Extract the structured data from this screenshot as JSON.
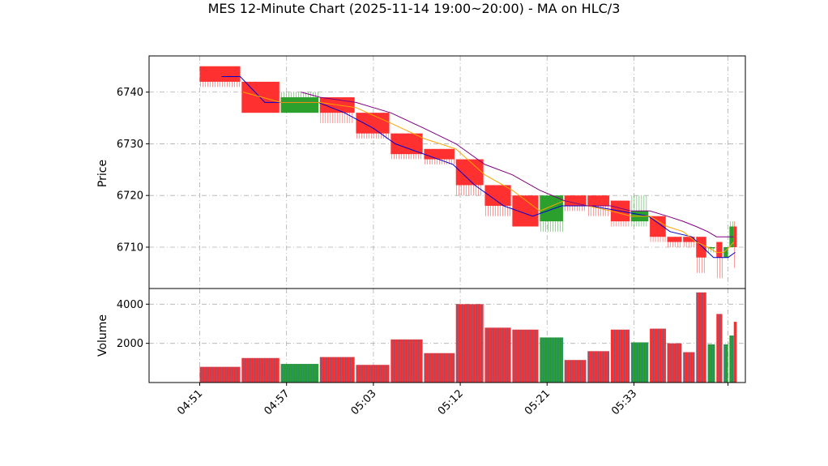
{
  "chart_data": {
    "type": "candlestick",
    "title": "MES 12-Minute Chart (2025-11-14 19:00~20:00) - MA on HLC/3",
    "x_tick_labels": [
      "04:51",
      "04:57",
      "05:03",
      "05:12",
      "05:21",
      "05:33"
    ],
    "price_panel": {
      "ylabel": "Price",
      "ylim": [
        6702,
        6747
      ],
      "yticks": [
        6710,
        6720,
        6730,
        6740
      ],
      "grid": true,
      "bars": [
        {
          "start": 0.0,
          "end": 2.8,
          "open": 6745,
          "close": 6742,
          "high": 6745,
          "low": 6741
        },
        {
          "start": 2.9,
          "end": 5.5,
          "open": 6742,
          "close": 6736,
          "high": 6742,
          "low": 6736
        },
        {
          "start": 5.6,
          "end": 8.2,
          "open": 6736,
          "close": 6739,
          "high": 6740,
          "low": 6736
        },
        {
          "start": 8.3,
          "end": 10.7,
          "open": 6739,
          "close": 6736,
          "high": 6739,
          "low": 6734
        },
        {
          "start": 10.8,
          "end": 13.1,
          "open": 6736,
          "close": 6732,
          "high": 6736,
          "low": 6731
        },
        {
          "start": 13.2,
          "end": 15.4,
          "open": 6732,
          "close": 6728,
          "high": 6732,
          "low": 6727
        },
        {
          "start": 15.5,
          "end": 17.6,
          "open": 6729,
          "close": 6727,
          "high": 6729,
          "low": 6726
        },
        {
          "start": 17.7,
          "end": 19.6,
          "open": 6727,
          "close": 6722,
          "high": 6727,
          "low": 6720
        },
        {
          "start": 19.7,
          "end": 21.5,
          "open": 6722,
          "close": 6718,
          "high": 6722,
          "low": 6716
        },
        {
          "start": 21.6,
          "end": 23.4,
          "open": 6720,
          "close": 6714,
          "high": 6720,
          "low": 6714
        },
        {
          "start": 23.5,
          "end": 25.1,
          "open": 6715,
          "close": 6720,
          "high": 6720,
          "low": 6713
        },
        {
          "start": 25.2,
          "end": 26.7,
          "open": 6720,
          "close": 6718,
          "high": 6720,
          "low": 6717
        },
        {
          "start": 26.8,
          "end": 28.3,
          "open": 6720,
          "close": 6718,
          "high": 6720,
          "low": 6716
        },
        {
          "start": 28.4,
          "end": 29.7,
          "open": 6719,
          "close": 6715,
          "high": 6719,
          "low": 6714
        },
        {
          "start": 29.8,
          "end": 31.0,
          "open": 6715,
          "close": 6717,
          "high": 6720,
          "low": 6714
        },
        {
          "start": 31.1,
          "end": 32.2,
          "open": 6716,
          "close": 6712,
          "high": 6716,
          "low": 6711
        },
        {
          "start": 32.3,
          "end": 33.3,
          "open": 6712,
          "close": 6711,
          "high": 6712,
          "low": 6710
        },
        {
          "start": 33.4,
          "end": 34.2,
          "open": 6712,
          "close": 6711,
          "high": 6712,
          "low": 6710
        },
        {
          "start": 34.3,
          "end": 35.0,
          "open": 6712,
          "close": 6708,
          "high": 6712,
          "low": 6705
        },
        {
          "start": 35.1,
          "end": 35.6,
          "open": 6710,
          "close": 6710,
          "high": 6710,
          "low": 6709
        },
        {
          "start": 35.7,
          "end": 36.1,
          "open": 6711,
          "close": 6708,
          "high": 6711,
          "low": 6704
        },
        {
          "start": 36.2,
          "end": 36.5,
          "open": 6708,
          "close": 6710,
          "high": 6710,
          "low": 6708
        },
        {
          "start": 36.6,
          "end": 36.9,
          "open": 6710,
          "close": 6714,
          "high": 6715,
          "low": 6710
        },
        {
          "start": 36.9,
          "end": 37.1,
          "open": 6714,
          "close": 6710,
          "high": 6715,
          "low": 6706
        }
      ],
      "ma_lines": [
        {
          "color": "#0000cc",
          "x": [
            1.5,
            2.8,
            4.5,
            5.6,
            8.2,
            10.0,
            12.0,
            13.5,
            15.5,
            17.5,
            19.0,
            21.0,
            23.0,
            25.0,
            27.0,
            29.0,
            31.0,
            32.5,
            34.0,
            35.5,
            36.5,
            37.0
          ],
          "y": [
            6743,
            6743,
            6738,
            6738,
            6738,
            6736,
            6733,
            6730,
            6728,
            6726,
            6722,
            6718,
            6716,
            6718,
            6718,
            6717,
            6716,
            6713,
            6712,
            6708,
            6708,
            6709
          ]
        },
        {
          "color": "#ffa500",
          "x": [
            3.0,
            5.6,
            8.3,
            10.8,
            13.2,
            15.5,
            17.7,
            19.7,
            21.6,
            23.5,
            25.2,
            26.8,
            28.4,
            29.8,
            31.1,
            32.3,
            33.4,
            34.3,
            35.1,
            35.7,
            36.2,
            36.6,
            36.9
          ],
          "y": [
            6740,
            6738,
            6738,
            6737,
            6734,
            6731,
            6729,
            6724,
            6721,
            6717,
            6719,
            6718,
            6717,
            6716,
            6716,
            6714,
            6713,
            6711,
            6710,
            6709,
            6709,
            6710,
            6711
          ]
        },
        {
          "color": "#800080",
          "x": [
            7.0,
            8.3,
            10.8,
            13.2,
            15.5,
            17.7,
            19.7,
            21.6,
            23.5,
            25.2,
            26.8,
            28.4,
            29.8,
            31.1,
            32.3,
            33.4,
            34.3,
            35.1,
            35.7,
            36.2,
            36.6,
            36.9
          ],
          "y": [
            6740,
            6739,
            6738,
            6736,
            6733,
            6730,
            6726,
            6724,
            6721,
            6719,
            6718,
            6718,
            6717,
            6717,
            6716,
            6715,
            6714,
            6713,
            6712,
            6712,
            6712,
            6712
          ]
        }
      ]
    },
    "volume_panel": {
      "ylabel": "Volume",
      "ylim": [
        0,
        4800
      ],
      "yticks": [
        2000,
        4000
      ],
      "grid": true,
      "volumes": [
        800,
        1250,
        950,
        1300,
        900,
        2200,
        1500,
        4000,
        2800,
        2700,
        2300,
        1150,
        1600,
        2700,
        2050,
        2750,
        2000,
        1550,
        4600,
        1950,
        3500,
        1950,
        2400,
        3100
      ]
    },
    "colors": {
      "up": "#2ca02c",
      "down": "#ff3030",
      "grid": "#b0b0b0",
      "volume_stripe": "#1f77b4"
    }
  }
}
